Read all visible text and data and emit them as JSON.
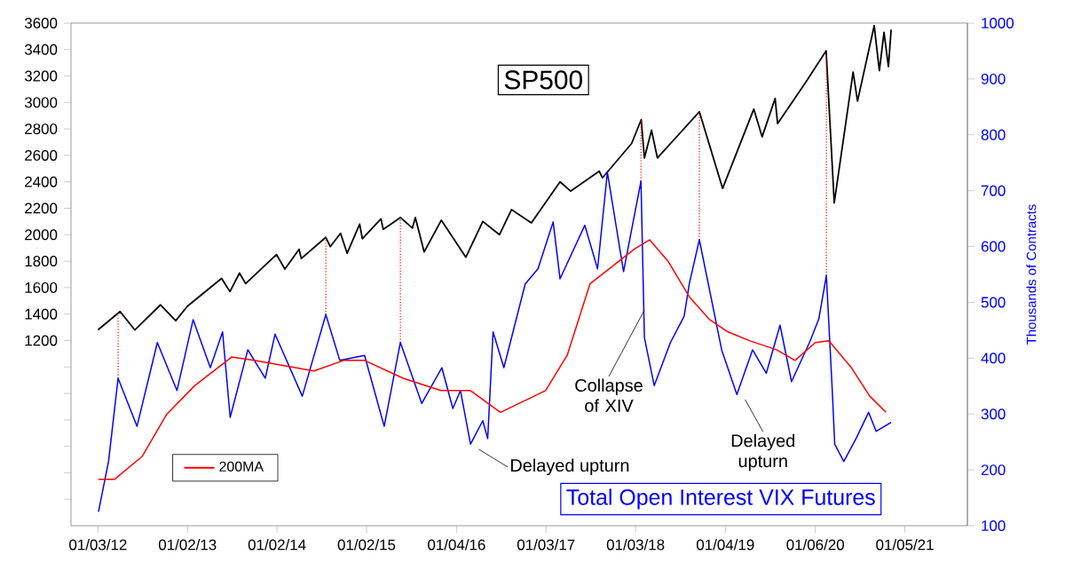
{
  "chart_data": {
    "type": "line",
    "annotations": [
      "SP500",
      "Total Open Interest VIX Futures",
      "Delayed upturn",
      {
        "text": "Collapse of XIV",
        "x": "2018-02-08",
        "y": 1430
      },
      "Delayed upturn"
    ],
    "y2label": "Thousands of Contracts",
    "xlim": [
      "2011-09-15",
      "2021-09-17"
    ],
    "xticks": [
      {
        "value": "2012-01-03",
        "label": "01/03/12"
      },
      {
        "value": "2013-01-02",
        "label": "01/02/13"
      },
      {
        "value": "2014-01-02",
        "label": "01/02/14"
      },
      {
        "value": "2015-01-02",
        "label": "01/02/15"
      },
      {
        "value": "2016-01-04",
        "label": "01/04/16"
      },
      {
        "value": "2017-01-03",
        "label": "01/03/17"
      },
      {
        "value": "2018-01-03",
        "label": "01/03/18"
      },
      {
        "value": "2019-01-04",
        "label": "01/04/19"
      },
      {
        "value": "2020-01-06",
        "label": "01/06/20"
      },
      {
        "value": "2021-01-05",
        "label": "01/05/21"
      }
    ],
    "ylim": [
      -200,
      3600
    ],
    "yticks": [
      {
        "value": 0,
        "label": null
      },
      {
        "value": 200,
        "label": null
      },
      {
        "value": 400,
        "label": null
      },
      {
        "value": 600,
        "label": null
      },
      {
        "value": 800,
        "label": null
      },
      {
        "value": 1000,
        "label": null
      },
      1200,
      1400,
      1600,
      1800,
      2000,
      2200,
      2400,
      2600,
      2800,
      3000,
      3200,
      3400,
      3600
    ],
    "y2lim": [
      100,
      1000
    ],
    "y2ticks": [
      100,
      200,
      300,
      400,
      500,
      600,
      700,
      800,
      900,
      1000
    ],
    "legend": "bottom left",
    "ref_lines": [
      {
        "axis": "x",
        "value": "2012-03-25",
        "color": "#ff0000",
        "line_style": "dotted"
      },
      {
        "axis": "x",
        "value": "2014-07-20",
        "color": "#ff0000",
        "line_style": "dotted"
      },
      {
        "axis": "x",
        "value": "2015-05-20",
        "color": "#ff0000",
        "line_style": "dotted"
      },
      {
        "axis": "x",
        "value": "2018-01-25",
        "color": "#ff0000",
        "line_style": "dotted"
      },
      {
        "axis": "x",
        "value": "2018-09-20",
        "color": "#ff0000",
        "line_style": "dotted"
      },
      {
        "axis": "x",
        "value": "2020-02-20",
        "color": "#ff0000",
        "line_style": "dotted"
      }
    ],
    "series": [
      {
        "color": "#000000",
        "x": [
          "2012-01-03",
          "2012-04-02",
          "2012-06-01",
          "2012-09-14",
          "2012-11-15",
          "2013-01-02",
          "2013-05-21",
          "2013-06-24",
          "2013-08-02",
          "2013-08-27",
          "2013-12-31",
          "2014-02-03",
          "2014-04-02",
          "2014-04-11",
          "2014-07-20",
          "2014-08-07",
          "2014-09-18",
          "2014-10-15",
          "2014-12-05",
          "2014-12-16",
          "2015-03-02",
          "2015-03-11",
          "2015-05-20",
          "2015-07-08",
          "2015-07-20",
          "2015-08-25",
          "2015-11-03",
          "2016-02-11",
          "2016-04-20",
          "2016-06-27",
          "2016-08-15",
          "2016-11-04",
          "2017-03-01",
          "2017-04-13",
          "2017-08-08",
          "2017-08-21",
          "2017-12-18",
          "2018-01-26",
          "2018-02-08",
          "2018-03-09",
          "2018-04-02",
          "2018-09-20",
          "2018-12-24",
          "2019-04-30",
          "2019-06-03",
          "2019-07-26",
          "2019-08-05",
          "2019-11-27",
          "2020-02-19",
          "2020-03-23",
          "2020-06-08",
          "2020-06-26",
          "2020-09-02",
          "2020-09-23",
          "2020-10-12",
          "2020-10-30",
          "2020-11-10"
        ],
        "values": [
          1280,
          1420,
          1280,
          1470,
          1350,
          1460,
          1670,
          1570,
          1710,
          1630,
          1850,
          1740,
          1890,
          1820,
          1980,
          1910,
          2010,
          1860,
          2080,
          1970,
          2120,
          2040,
          2130,
          2050,
          2130,
          1870,
          2110,
          1830,
          2100,
          2000,
          2190,
          2090,
          2400,
          2330,
          2480,
          2430,
          2690,
          2870,
          2580,
          2790,
          2580,
          2930,
          2350,
          2950,
          2740,
          3030,
          2840,
          3150,
          3390,
          2240,
          3230,
          3010,
          3580,
          3240,
          3530,
          3270,
          3550
        ]
      },
      {
        "color": "#0000ff",
        "axis": "y2",
        "x": [
          "2012-01-05",
          "2012-02-15",
          "2012-03-25",
          "2012-06-10",
          "2012-09-01",
          "2012-11-20",
          "2013-01-25",
          "2013-04-05",
          "2013-05-25",
          "2013-06-25",
          "2013-09-05",
          "2013-11-15",
          "2013-12-25",
          "2014-04-15",
          "2014-07-20",
          "2014-09-15",
          "2014-12-25",
          "2015-03-15",
          "2015-05-20",
          "2015-08-15",
          "2015-11-05",
          "2015-12-20",
          "2016-01-20",
          "2016-03-01",
          "2016-04-20",
          "2016-05-10",
          "2016-06-01",
          "2016-07-15",
          "2016-10-10",
          "2016-12-01",
          "2017-02-01",
          "2017-03-01",
          "2017-06-10",
          "2017-08-01",
          "2017-09-10",
          "2017-11-15",
          "2018-01-25",
          "2018-02-08",
          "2018-03-20",
          "2018-05-25",
          "2018-07-20",
          "2018-08-10",
          "2018-09-20",
          "2018-12-20",
          "2019-02-20",
          "2019-04-25",
          "2019-06-20",
          "2019-08-15",
          "2019-10-01",
          "2019-12-15",
          "2020-01-20",
          "2020-02-20",
          "2020-03-05",
          "2020-03-15",
          "2020-03-25",
          "2020-05-01",
          "2020-06-20",
          "2020-08-10",
          "2020-09-10",
          "2020-11-10"
        ],
        "values": [
          125,
          215,
          364,
          278,
          428,
          342,
          469,
          383,
          447,
          294,
          415,
          364,
          443,
          332,
          478,
          396,
          405,
          278,
          428,
          319,
          383,
          310,
          342,
          246,
          288,
          256,
          447,
          383,
          533,
          560,
          644,
          542,
          638,
          560,
          733,
          555,
          717,
          437,
          351,
          428,
          475,
          533,
          612,
          415,
          335,
          415,
          373,
          459,
          358,
          430,
          470,
          548,
          428,
          342,
          246,
          215,
          256,
          303,
          269,
          285
        ]
      },
      {
        "name": "200MA",
        "color": "#ff0000",
        "axis": "y2",
        "x": [
          "2012-01-05",
          "2012-03-10",
          "2012-07-01",
          "2012-10-10",
          "2013-02-01",
          "2013-07-01",
          "2013-10-01",
          "2014-01-01",
          "2014-06-01",
          "2014-10-01",
          "2014-12-25",
          "2015-06-01",
          "2015-11-01",
          "2016-03-01",
          "2016-07-01",
          "2017-01-01",
          "2017-03-30",
          "2017-07-01",
          "2017-12-31",
          "2018-03-01",
          "2018-05-15",
          "2018-08-10",
          "2018-11-01",
          "2019-01-15",
          "2019-04-15",
          "2019-08-01",
          "2019-10-15",
          "2020-01-06",
          "2020-03-01",
          "2020-06-01",
          "2020-08-15",
          "2020-10-20"
        ],
        "values": [
          183,
          183,
          224,
          300,
          351,
          402,
          396,
          389,
          377,
          396,
          396,
          364,
          342,
          342,
          303,
          342,
          405,
          533,
          596,
          612,
          574,
          510,
          469,
          447,
          431,
          415,
          396,
          428,
          431,
          383,
          332,
          303
        ]
      }
    ]
  }
}
